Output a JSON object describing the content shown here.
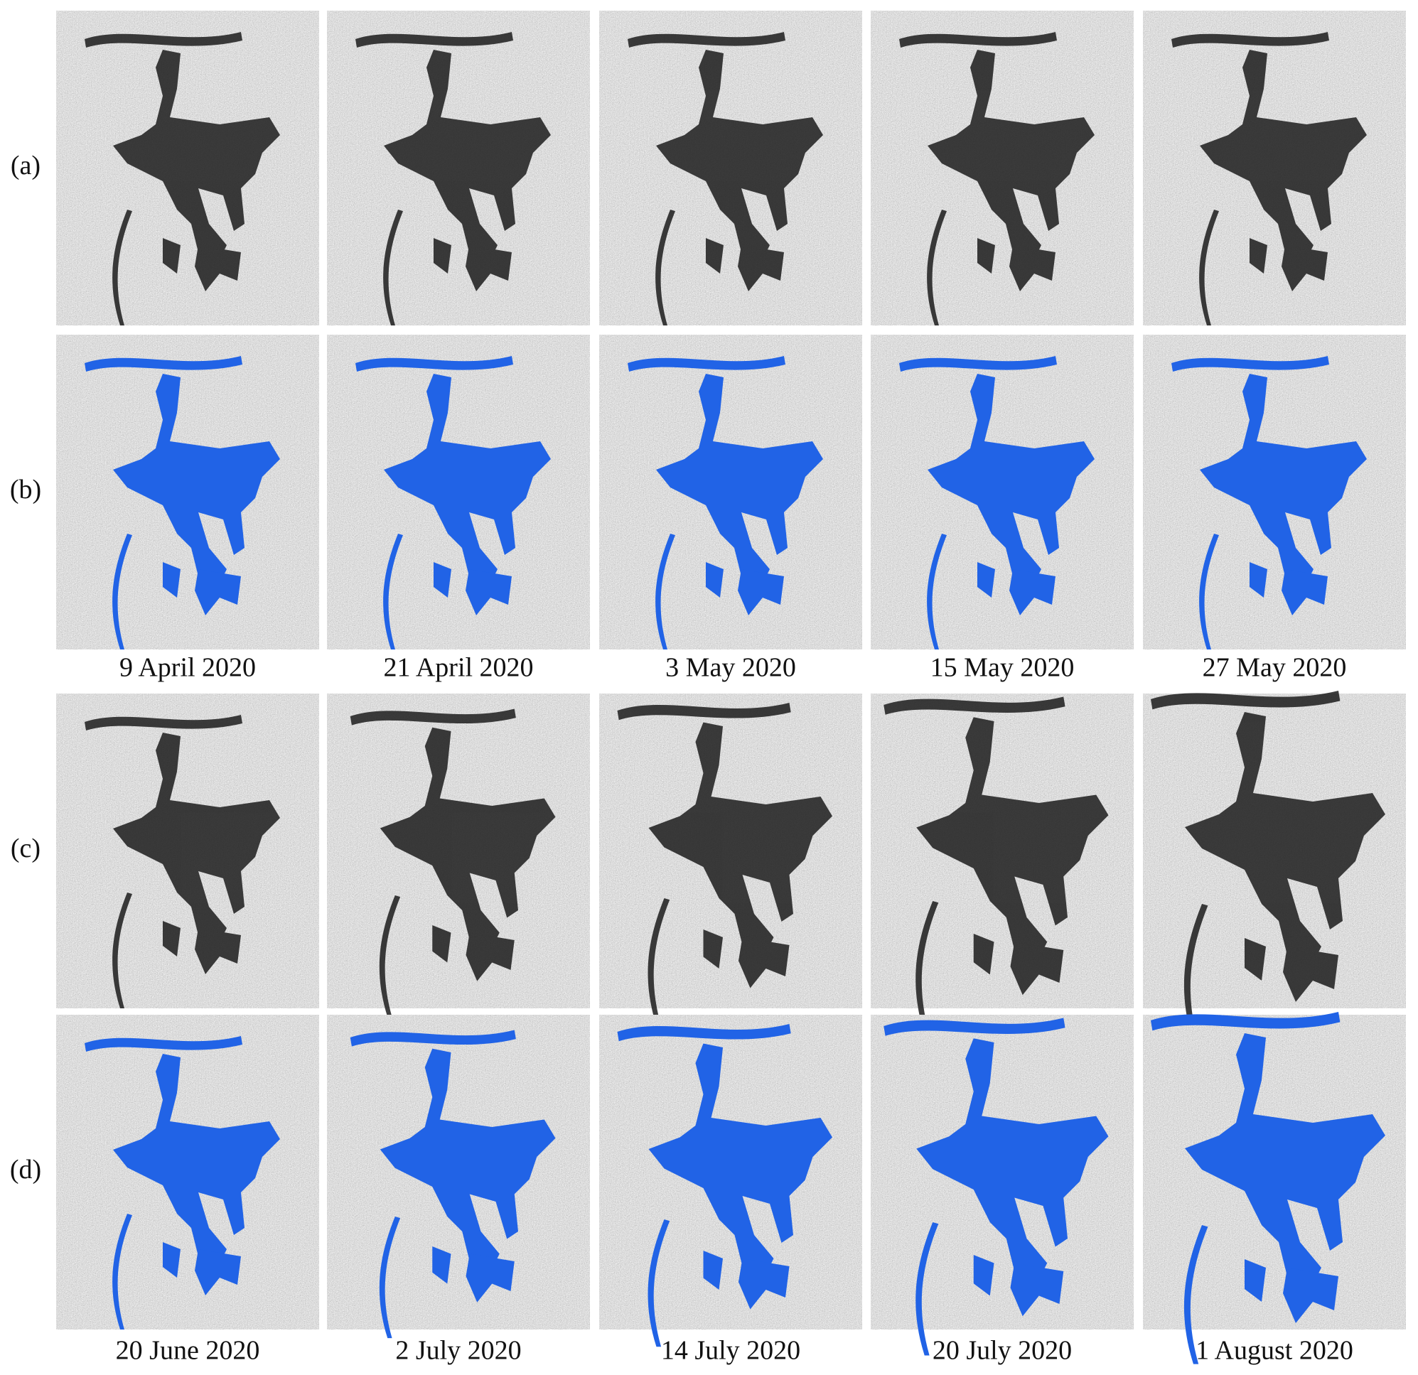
{
  "rows": [
    {
      "label": "(a)"
    },
    {
      "label": "(b)"
    },
    {
      "label": "(c)"
    },
    {
      "label": "(d)"
    }
  ],
  "date_labels": [
    [
      "9 April 2020",
      "21 April 2020",
      "3 May 2020",
      "15 May 2020",
      "27 May 2020"
    ],
    [
      "20 June 2020",
      "2 July 2020",
      "14 July 2020",
      "20 July 2020",
      "1 August 2020"
    ]
  ]
}
